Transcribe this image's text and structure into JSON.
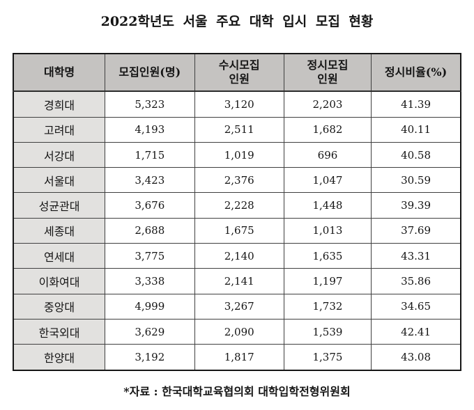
{
  "title": "2022학년도 서울 주요 대학 입시 모집 현황",
  "source_note": "*자료 : 한국대학교육협의회 대학입학전형위원회",
  "colors": {
    "header_bg": "#c5c3c1",
    "row_header_bg": "#e2e1df",
    "inner_border": "#3f3f3f",
    "outer_border": "#161616",
    "text": "#141414",
    "background": "#ffffff"
  },
  "chart_data": {
    "type": "table",
    "title": "2022학년도 서울 주요 대학 입시 모집 현황",
    "columns": [
      "대학명",
      "모집인원(명)",
      "수시모집\n인원",
      "정시모집\n인원",
      "정시비율(%)"
    ],
    "rows": [
      [
        "경희대",
        "5,323",
        "3,120",
        "2,203",
        "41.39"
      ],
      [
        "고려대",
        "4,193",
        "2,511",
        "1,682",
        "40.11"
      ],
      [
        "서강대",
        "1,715",
        "1,019",
        "696",
        "40.58"
      ],
      [
        "서울대",
        "3,423",
        "2,376",
        "1,047",
        "30.59"
      ],
      [
        "성균관대",
        "3,676",
        "2,228",
        "1,448",
        "39.39"
      ],
      [
        "세종대",
        "2,688",
        "1,675",
        "1,013",
        "37.69"
      ],
      [
        "연세대",
        "3,775",
        "2,140",
        "1,635",
        "43.31"
      ],
      [
        "이화여대",
        "3,338",
        "2,141",
        "1,197",
        "35.86"
      ],
      [
        "중앙대",
        "4,999",
        "3,267",
        "1,732",
        "34.65"
      ],
      [
        "한국외대",
        "3,629",
        "2,090",
        "1,539",
        "42.41"
      ],
      [
        "한양대",
        "3,192",
        "1,817",
        "1,375",
        "43.08"
      ]
    ],
    "source": "*자료 : 한국대학교육협의회 대학입학전형위원회"
  }
}
